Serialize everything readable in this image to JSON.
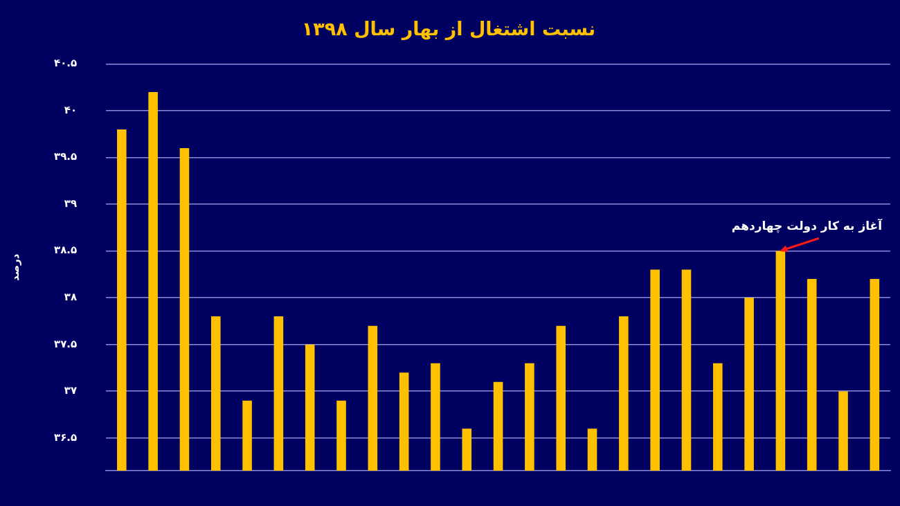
{
  "chart_data": {
    "type": "bar",
    "title": "نسبت اشتغال از بهار سال ۱۳۹۸",
    "ylabel": "درصد",
    "categories": [
      null,
      null,
      null,
      null,
      null,
      null,
      null,
      null,
      null,
      null,
      null,
      null,
      null,
      null,
      null,
      null,
      null,
      null,
      null,
      null,
      null,
      null,
      null,
      null,
      null
    ],
    "values": [
      39.8,
      40.2,
      39.6,
      37.8,
      36.9,
      37.8,
      37.5,
      36.9,
      37.7,
      37.2,
      37.3,
      36.6,
      37.1,
      37.3,
      37.7,
      36.6,
      37.8,
      38.3,
      38.3,
      37.3,
      38.0,
      38.5,
      38.2,
      37.0,
      38.2
    ],
    "color": "#ffc000",
    "ylim": [
      36.15,
      40.5
    ],
    "yticks": [
      {
        "value": 36.5,
        "label": "۳۶.۵"
      },
      {
        "value": 37,
        "label": "۳۷"
      },
      {
        "value": 37.5,
        "label": "۳۷.۵"
      },
      {
        "value": 38,
        "label": "۳۸"
      },
      {
        "value": 38.5,
        "label": "۳۸.۵"
      },
      {
        "value": 39,
        "label": "۳۹"
      },
      {
        "value": 39.5,
        "label": "۳۹.۵"
      },
      {
        "value": 40,
        "label": "۴۰"
      },
      {
        "value": 40.5,
        "label": "۴۰.۵"
      }
    ],
    "grid": "y",
    "legend": false,
    "annotations": [
      "آغاز به کار دولت چهاردهم"
    ]
  }
}
